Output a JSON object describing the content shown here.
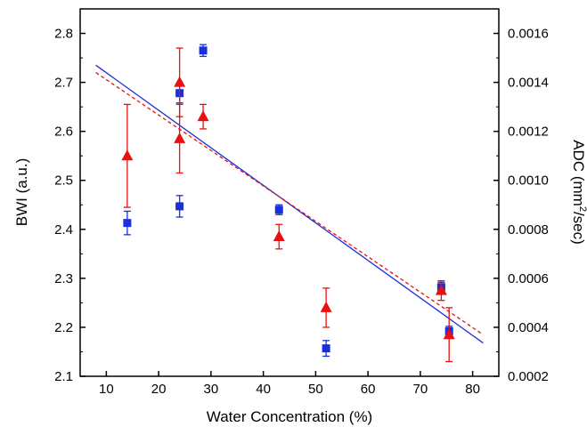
{
  "chart_data": {
    "type": "scatter",
    "xlabel": "Water Concentration (%)",
    "ylabel_left": "BWI (a.u.)",
    "ylabel_right_prefix": "ADC (mm",
    "ylabel_right_sup": "2",
    "ylabel_right_suffix": "/sec)",
    "xlim": [
      5,
      85
    ],
    "ylim_left": [
      2.1,
      2.85
    ],
    "ylim_right": [
      0.0002,
      0.0017
    ],
    "x_ticks": [
      "10",
      "20",
      "30",
      "40",
      "50",
      "60",
      "70",
      "80"
    ],
    "x_tick_values": [
      10,
      20,
      30,
      40,
      50,
      60,
      70,
      80
    ],
    "y_ticks_left": [
      "2.1",
      "2.2",
      "2.3",
      "2.4",
      "2.5",
      "2.6",
      "2.7",
      "2.8"
    ],
    "y_tick_values_left": [
      2.1,
      2.2,
      2.3,
      2.4,
      2.5,
      2.6,
      2.7,
      2.8
    ],
    "y_ticks_right": [
      "0.0002",
      "0.0004",
      "0.0006",
      "0.0008",
      "0.0010",
      "0.0012",
      "0.0014",
      "0.0016"
    ],
    "y_tick_values_right": [
      0.0002,
      0.0004,
      0.0006,
      0.0008,
      0.001,
      0.0012,
      0.0014,
      0.0016
    ],
    "grid": false,
    "legend": "none",
    "series": [
      {
        "axis": "left",
        "marker": "square",
        "color": "#1a2fd8",
        "points": [
          {
            "x": 14,
            "y": 2.413,
            "err": 0.024
          },
          {
            "x": 24,
            "y": 2.678,
            "err": 0.02
          },
          {
            "x": 24,
            "y": 2.447,
            "err": 0.022
          },
          {
            "x": 28.5,
            "y": 2.765,
            "err": 0.012
          },
          {
            "x": 43,
            "y": 2.44,
            "err": 0.01
          },
          {
            "x": 52,
            "y": 2.157,
            "err": 0.016
          },
          {
            "x": 74,
            "y": 2.282,
            "err": 0.01
          },
          {
            "x": 75.5,
            "y": 2.192,
            "err": 0.01
          }
        ],
        "fit": {
          "x": [
            8,
            82
          ],
          "y": [
            2.735,
            2.168
          ],
          "style": "solid"
        }
      },
      {
        "axis": "right",
        "marker": "triangle",
        "color": "#e81010",
        "points": [
          {
            "x": 14,
            "y": 0.0011,
            "err": 0.00021
          },
          {
            "x": 24,
            "y": 0.0014,
            "err": 0.00014
          },
          {
            "x": 24,
            "y": 0.00117,
            "err": 0.00014
          },
          {
            "x": 28.5,
            "y": 0.00126,
            "err": 5e-05
          },
          {
            "x": 43,
            "y": 0.00077,
            "err": 5e-05
          },
          {
            "x": 52,
            "y": 0.00048,
            "err": 8e-05
          },
          {
            "x": 74,
            "y": 0.00055,
            "err": 4e-05
          },
          {
            "x": 75.5,
            "y": 0.00037,
            "err": 0.00011
          }
        ],
        "fit": {
          "x": [
            8,
            82
          ],
          "y": [
            0.00144,
            0.00037
          ],
          "style": "dashed"
        }
      }
    ]
  }
}
